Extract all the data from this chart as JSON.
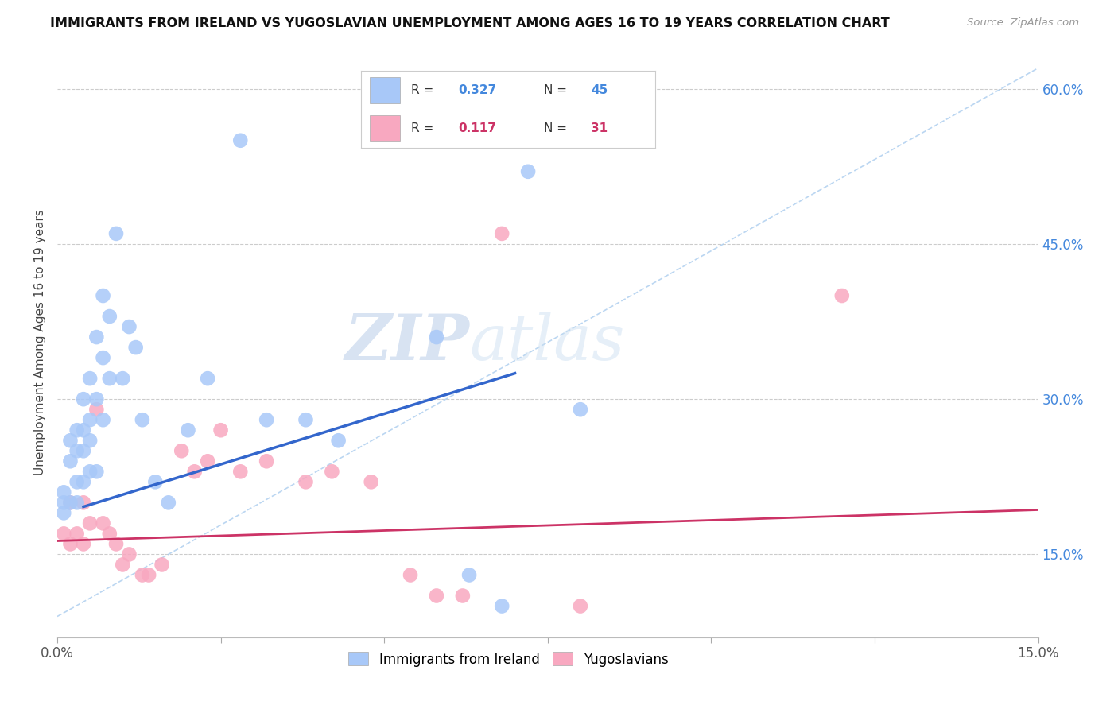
{
  "title": "IMMIGRANTS FROM IRELAND VS YUGOSLAVIAN UNEMPLOYMENT AMONG AGES 16 TO 19 YEARS CORRELATION CHART",
  "source": "Source: ZipAtlas.com",
  "ylabel": "Unemployment Among Ages 16 to 19 years",
  "xlim": [
    0.0,
    0.15
  ],
  "ylim": [
    0.07,
    0.64
  ],
  "xtick_positions": [
    0.0,
    0.025,
    0.05,
    0.075,
    0.1,
    0.125,
    0.15
  ],
  "xticklabels": [
    "0.0%",
    "",
    "",
    "",
    "",
    "",
    "15.0%"
  ],
  "yticks_right": [
    0.15,
    0.3,
    0.45,
    0.6
  ],
  "ytick_right_labels": [
    "15.0%",
    "30.0%",
    "45.0%",
    "60.0%"
  ],
  "ireland_R": 0.327,
  "ireland_N": 45,
  "yugoslav_R": 0.117,
  "yugoslav_N": 31,
  "ireland_color": "#a8c8f8",
  "ireland_line_color": "#3366cc",
  "yugoslav_color": "#f8a8c0",
  "yugoslav_line_color": "#cc3366",
  "ref_line_color": "#aaccee",
  "background_color": "#ffffff",
  "watermark_zip": "ZIP",
  "watermark_atlas": "atlas",
  "ireland_x": [
    0.001,
    0.001,
    0.001,
    0.002,
    0.002,
    0.002,
    0.003,
    0.003,
    0.003,
    0.003,
    0.004,
    0.004,
    0.004,
    0.004,
    0.005,
    0.005,
    0.005,
    0.005,
    0.006,
    0.006,
    0.006,
    0.007,
    0.007,
    0.007,
    0.008,
    0.008,
    0.009,
    0.01,
    0.011,
    0.012,
    0.013,
    0.015,
    0.017,
    0.02,
    0.023,
    0.028,
    0.032,
    0.038,
    0.043,
    0.05,
    0.058,
    0.063,
    0.068,
    0.072,
    0.08
  ],
  "ireland_y": [
    0.21,
    0.2,
    0.19,
    0.26,
    0.24,
    0.2,
    0.27,
    0.25,
    0.22,
    0.2,
    0.3,
    0.27,
    0.25,
    0.22,
    0.32,
    0.28,
    0.26,
    0.23,
    0.36,
    0.3,
    0.23,
    0.4,
    0.34,
    0.28,
    0.38,
    0.32,
    0.46,
    0.32,
    0.37,
    0.35,
    0.28,
    0.22,
    0.2,
    0.27,
    0.32,
    0.55,
    0.28,
    0.28,
    0.26,
    0.57,
    0.36,
    0.13,
    0.1,
    0.52,
    0.29
  ],
  "yugoslav_x": [
    0.001,
    0.002,
    0.002,
    0.003,
    0.004,
    0.004,
    0.005,
    0.006,
    0.007,
    0.008,
    0.009,
    0.01,
    0.011,
    0.013,
    0.014,
    0.016,
    0.019,
    0.021,
    0.023,
    0.025,
    0.028,
    0.032,
    0.038,
    0.042,
    0.048,
    0.054,
    0.058,
    0.062,
    0.068,
    0.08,
    0.12
  ],
  "yugoslav_y": [
    0.17,
    0.2,
    0.16,
    0.17,
    0.2,
    0.16,
    0.18,
    0.29,
    0.18,
    0.17,
    0.16,
    0.14,
    0.15,
    0.13,
    0.13,
    0.14,
    0.25,
    0.23,
    0.24,
    0.27,
    0.23,
    0.24,
    0.22,
    0.23,
    0.22,
    0.13,
    0.11,
    0.11,
    0.46,
    0.1,
    0.4
  ],
  "ireland_trend_x": [
    0.004,
    0.07
  ],
  "ireland_trend_y": [
    0.196,
    0.325
  ],
  "yugoslav_trend_x": [
    0.0,
    0.15
  ],
  "yugoslav_trend_y": [
    0.163,
    0.193
  ]
}
